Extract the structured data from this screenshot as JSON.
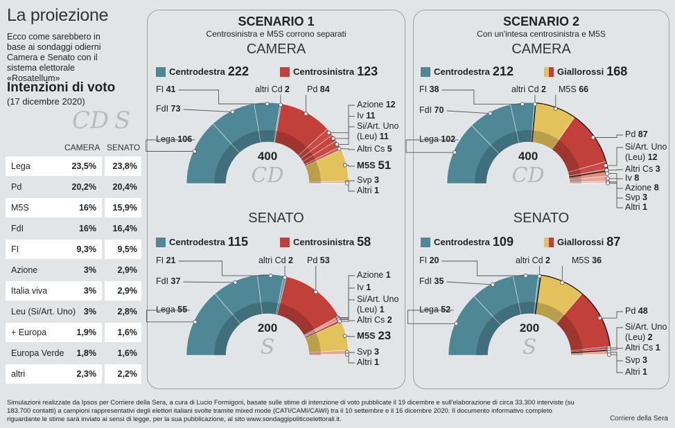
{
  "header": {
    "title": "La proiezione",
    "intro": "Ecco come sarebbero in base ai sondaggi odierni Camera e Senato con il sistema elettorale «Rosatellum»"
  },
  "poll": {
    "title": "Intenzioni di voto",
    "date": "(17 dicembre 2020)",
    "logo_camera": "CD",
    "logo_senato": "S",
    "col_camera": "CAMERA",
    "col_senato": "SENATO",
    "rows": [
      {
        "party": "Lega",
        "camera": "23,5%",
        "senato": "23,8%"
      },
      {
        "party": "Pd",
        "camera": "20,2%",
        "senato": "20,4%"
      },
      {
        "party": "M5S",
        "camera": "16%",
        "senato": "15,9%"
      },
      {
        "party": "FdI",
        "camera": "16%",
        "senato": "16,4%"
      },
      {
        "party": "FI",
        "camera": "9,3%",
        "senato": "9,5%"
      },
      {
        "party": "Azione",
        "camera": "3%",
        "senato": "2,9%"
      },
      {
        "party": "Italia viva",
        "camera": "3%",
        "senato": "2,9%"
      },
      {
        "party": "Leu (Si/Art. Uno)",
        "camera": "3%",
        "senato": "2,8%"
      },
      {
        "party": "+ Europa",
        "camera": "1,9%",
        "senato": "1,6%"
      },
      {
        "party": "Europa Verde",
        "camera": "1,8%",
        "senato": "1,6%"
      },
      {
        "party": "altri",
        "camera": "2,3%",
        "senato": "2,2%"
      }
    ]
  },
  "scenarios": [
    {
      "title": "SCENARIO 1",
      "subtitle": "Centrosinistra e M5S corrono separati"
    },
    {
      "title": "SCENARIO 2",
      "subtitle": "Con un'intesa centrosinistra e M5S"
    }
  ],
  "colors": {
    "centrodestra": "#4f8797",
    "centrosinistra": "#c1413a",
    "m5s": "#e3c25b"
  },
  "chart_data": [
    {
      "type": "pie",
      "shape": "semicircle-donut",
      "scenario": "SCENARIO 1",
      "chamber": "CAMERA",
      "total": 400,
      "legend": [
        {
          "label": "Centrodestra",
          "value": 222,
          "colors": [
            "#4f8797"
          ]
        },
        {
          "label": "Centrosinistra",
          "value": 123,
          "colors": [
            "#c1413a"
          ]
        }
      ],
      "parties": [
        {
          "name": "Lega",
          "seats": 106,
          "color": "#4f8797"
        },
        {
          "name": "FdI",
          "seats": 73,
          "color": "#4f8797"
        },
        {
          "name": "FI",
          "seats": 41,
          "color": "#4f8797"
        },
        {
          "name": "altri Cd",
          "seats": 2,
          "color": "#5c93a2"
        },
        {
          "name": "Pd",
          "seats": 84,
          "color": "#c1413a"
        },
        {
          "name": "Azione",
          "seats": 12,
          "color": "#c84a42"
        },
        {
          "name": "Iv",
          "seats": 11,
          "color": "#c5443d"
        },
        {
          "name": "Si/Art. Uno (Leu)",
          "seats": 11,
          "color": "#c84a42"
        },
        {
          "name": "Altri Cs",
          "seats": 5,
          "color": "#d06058"
        },
        {
          "name": "M5S",
          "seats": 51,
          "color": "#e3c25b"
        },
        {
          "name": "Svp",
          "seats": 3,
          "color": "#e9a593"
        },
        {
          "name": "Altri",
          "seats": 1,
          "color": "#f2c8bb"
        }
      ]
    },
    {
      "type": "pie",
      "shape": "semicircle-donut",
      "scenario": "SCENARIO 1",
      "chamber": "SENATO",
      "total": 200,
      "legend": [
        {
          "label": "Centrodestra",
          "value": 115,
          "colors": [
            "#4f8797"
          ]
        },
        {
          "label": "Centrosinistra",
          "value": 58,
          "colors": [
            "#c1413a"
          ]
        }
      ],
      "parties": [
        {
          "name": "Lega",
          "seats": 55,
          "color": "#4f8797"
        },
        {
          "name": "FdI",
          "seats": 37,
          "color": "#4f8797"
        },
        {
          "name": "FI",
          "seats": 21,
          "color": "#4f8797"
        },
        {
          "name": "altri Cd",
          "seats": 2,
          "color": "#5c93a2"
        },
        {
          "name": "Pd",
          "seats": 53,
          "color": "#c1413a"
        },
        {
          "name": "Azione",
          "seats": 1,
          "color": "#d87a70"
        },
        {
          "name": "Iv",
          "seats": 1,
          "color": "#c84a42"
        },
        {
          "name": "Si/Art. Uno (Leu)",
          "seats": 1,
          "color": "#d87a70"
        },
        {
          "name": "Altri Cs",
          "seats": 2,
          "color": "#c5443d"
        },
        {
          "name": "M5S",
          "seats": 23,
          "color": "#e3c25b"
        },
        {
          "name": "Svp",
          "seats": 3,
          "color": "#e9a593"
        },
        {
          "name": "Altri",
          "seats": 1,
          "color": "#f2c8bb"
        }
      ]
    },
    {
      "type": "pie",
      "shape": "semicircle-donut",
      "scenario": "SCENARIO 2",
      "chamber": "CAMERA",
      "total": 400,
      "legend": [
        {
          "label": "Centrodestra",
          "value": 212,
          "colors": [
            "#4f8797"
          ]
        },
        {
          "label": "Giallorossi",
          "value": 168,
          "colors": [
            "#e3c25b",
            "#c1413a"
          ]
        }
      ],
      "parties": [
        {
          "name": "Lega",
          "seats": 102,
          "color": "#4f8797"
        },
        {
          "name": "FdI",
          "seats": 70,
          "color": "#4f8797"
        },
        {
          "name": "FI",
          "seats": 38,
          "color": "#4f8797"
        },
        {
          "name": "altri Cd",
          "seats": 2,
          "color": "#6aa0ae"
        },
        {
          "name": "M5S",
          "seats": 66,
          "color": "#e3c25b"
        },
        {
          "name": "Pd",
          "seats": 87,
          "color": "#c1413a"
        },
        {
          "name": "Si/Art. Uno (Leu)",
          "seats": 12,
          "color": "#c84a42"
        },
        {
          "name": "Altri Cs",
          "seats": 3,
          "color": "#d06058"
        },
        {
          "name": "Iv",
          "seats": 8,
          "color": "#e3917f"
        },
        {
          "name": "Azione",
          "seats": 8,
          "color": "#e9a593"
        },
        {
          "name": "Svp",
          "seats": 3,
          "color": "#eeb6a6"
        },
        {
          "name": "Altri",
          "seats": 1,
          "color": "#f2c8bb"
        }
      ]
    },
    {
      "type": "pie",
      "shape": "semicircle-donut",
      "scenario": "SCENARIO 2",
      "chamber": "SENATO",
      "total": 200,
      "legend": [
        {
          "label": "Centrodestra",
          "value": 109,
          "colors": [
            "#4f8797"
          ]
        },
        {
          "label": "Giallorossi",
          "value": 87,
          "colors": [
            "#e3c25b",
            "#c1413a"
          ]
        }
      ],
      "parties": [
        {
          "name": "Lega",
          "seats": 52,
          "color": "#4f8797"
        },
        {
          "name": "FdI",
          "seats": 35,
          "color": "#4f8797"
        },
        {
          "name": "FI",
          "seats": 20,
          "color": "#4f8797"
        },
        {
          "name": "altri Cd",
          "seats": 2,
          "color": "#6aa0ae"
        },
        {
          "name": "M5S",
          "seats": 36,
          "color": "#e3c25b"
        },
        {
          "name": "Pd",
          "seats": 48,
          "color": "#c1413a"
        },
        {
          "name": "Si/Art. Uno (Leu)",
          "seats": 2,
          "color": "#c84a42"
        },
        {
          "name": "Altri Cs",
          "seats": 1,
          "color": "#d06058"
        },
        {
          "name": "Svp",
          "seats": 3,
          "color": "#e9a593"
        },
        {
          "name": "Altri",
          "seats": 1,
          "color": "#f2c8bb"
        }
      ]
    }
  ],
  "footer": {
    "note": "Simulazioni realizzate da Ipsos per Corriere della Sera, a cura di Lucio Formigoni, basate sulle stime di intenzione di voto pubblicate il 19 dicembre e sull'elaborazione di circa 33.300 interviste (su 183.700 contatti) a campioni rappresentativi degli elettori italiani svolte tramite mixed mode (CATI/CAMI/CAWI) tra il 10 settembre e il 16 dicembre 2020. Il documento informativo completo riguardante le stime sarà inviato ai sensi di legge, per la sua pubblicazione, al sito www.sondaggipoliticoelettorali.it.",
    "source": "Corriere della Sera"
  }
}
